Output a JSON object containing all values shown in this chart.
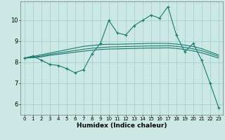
{
  "xlabel": "Humidex (Indice chaleur)",
  "bg_color": "#cce8e4",
  "grid_color": "#99cccc",
  "line_color": "#1a7a6e",
  "xlim": [
    -0.5,
    23.5
  ],
  "ylim": [
    5.5,
    10.9
  ],
  "yticks": [
    6,
    7,
    8,
    9,
    10
  ],
  "xticks": [
    0,
    1,
    2,
    3,
    4,
    5,
    6,
    7,
    8,
    9,
    10,
    11,
    12,
    13,
    14,
    15,
    16,
    17,
    18,
    19,
    20,
    21,
    22,
    23
  ],
  "series_main": [
    8.2,
    8.3,
    8.1,
    7.9,
    7.85,
    7.7,
    7.5,
    7.65,
    8.4,
    8.9,
    10.0,
    9.4,
    9.3,
    9.75,
    10.0,
    10.25,
    10.1,
    10.65,
    9.3,
    8.5,
    8.9,
    8.1,
    7.0,
    5.85
  ],
  "series_line1": [
    8.2,
    8.28,
    8.36,
    8.44,
    8.52,
    8.6,
    8.68,
    8.76,
    8.8,
    8.84,
    8.86,
    8.86,
    8.87,
    8.88,
    8.89,
    8.9,
    8.9,
    8.9,
    8.87,
    8.82,
    8.75,
    8.65,
    8.5,
    8.35
  ],
  "series_line2": [
    8.2,
    8.25,
    8.3,
    8.38,
    8.44,
    8.5,
    8.56,
    8.62,
    8.67,
    8.7,
    8.73,
    8.74,
    8.75,
    8.76,
    8.77,
    8.78,
    8.78,
    8.79,
    8.76,
    8.71,
    8.64,
    8.55,
    8.42,
    8.28
  ],
  "series_line3": [
    8.2,
    8.22,
    8.26,
    8.33,
    8.38,
    8.43,
    8.48,
    8.53,
    8.57,
    8.61,
    8.63,
    8.64,
    8.65,
    8.66,
    8.67,
    8.68,
    8.68,
    8.69,
    8.66,
    8.61,
    8.54,
    8.45,
    8.33,
    8.2
  ]
}
